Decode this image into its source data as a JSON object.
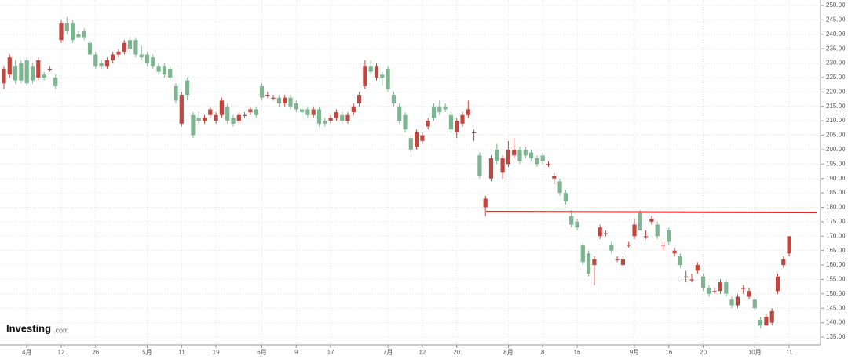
{
  "chart_data": {
    "type": "candlestick",
    "categories": [
      null,
      null,
      null,
      null,
      "4月",
      null,
      null,
      null,
      null,
      null,
      "12",
      null,
      null,
      null,
      null,
      null,
      "26",
      null,
      null,
      null,
      null,
      null,
      null,
      null,
      null,
      "5月",
      null,
      null,
      null,
      null,
      null,
      "11",
      null,
      null,
      null,
      null,
      null,
      "19",
      null,
      null,
      null,
      null,
      null,
      null,
      null,
      "6月",
      null,
      null,
      null,
      null,
      null,
      "9",
      null,
      null,
      null,
      null,
      null,
      "17",
      null,
      null,
      null,
      null,
      null,
      null,
      null,
      null,
      null,
      "7月",
      null,
      null,
      null,
      null,
      null,
      "12",
      null,
      null,
      null,
      null,
      null,
      "20",
      null,
      null,
      null,
      null,
      null,
      null,
      null,
      null,
      "8月",
      null,
      null,
      null,
      null,
      null,
      "8",
      null,
      null,
      null,
      null,
      null,
      "16",
      null,
      null,
      null,
      null,
      null,
      null,
      null,
      null,
      null,
      "9月",
      null,
      null,
      null,
      null,
      null,
      "16",
      null,
      null,
      null,
      null,
      null,
      "20",
      null,
      null,
      null,
      null,
      null,
      null,
      null,
      null,
      "10月",
      null,
      null,
      null,
      null,
      null,
      "11"
    ],
    "ohlc": [
      [
        223,
        229,
        221,
        228
      ],
      [
        226,
        233,
        225,
        232
      ],
      [
        229,
        231,
        223,
        224
      ],
      [
        230,
        231,
        223,
        224
      ],
      [
        231,
        232,
        222,
        223
      ],
      [
        229,
        230,
        223,
        224
      ],
      [
        225,
        232,
        224,
        231
      ],
      [
        226,
        227,
        224,
        225
      ],
      [
        228,
        229,
        227,
        228
      ],
      [
        225,
        226,
        221,
        222
      ],
      [
        238,
        245,
        237,
        244
      ],
      [
        244,
        246,
        240,
        241
      ],
      [
        244,
        245,
        237,
        238
      ],
      [
        240,
        241,
        239,
        239
      ],
      [
        241,
        242,
        238,
        239
      ],
      [
        237,
        238,
        233,
        233
      ],
      [
        233,
        234,
        228,
        229
      ],
      [
        230,
        231,
        228,
        229
      ],
      [
        229,
        232,
        228,
        231
      ],
      [
        231,
        234,
        230,
        233
      ],
      [
        233,
        235,
        232,
        234
      ],
      [
        234,
        238,
        233,
        237
      ],
      [
        238,
        239,
        234,
        235
      ],
      [
        238,
        239,
        232,
        233
      ],
      [
        233,
        236,
        231,
        232
      ],
      [
        233,
        234,
        229,
        230
      ],
      [
        232,
        233,
        228,
        229
      ],
      [
        229,
        230,
        226,
        227
      ],
      [
        229,
        230,
        225,
        226
      ],
      [
        228,
        229,
        224,
        225
      ],
      [
        222,
        223,
        216,
        217
      ],
      [
        209,
        220,
        208,
        219
      ],
      [
        224,
        225,
        217,
        219
      ],
      [
        212,
        213,
        204,
        205
      ],
      [
        211,
        213,
        209,
        210
      ],
      [
        210,
        212,
        209,
        211
      ],
      [
        212,
        215,
        211,
        214
      ],
      [
        210,
        213,
        209,
        212
      ],
      [
        212,
        218,
        211,
        217
      ],
      [
        215,
        216,
        209,
        210
      ],
      [
        211,
        212,
        208,
        209
      ],
      [
        210,
        213,
        209,
        212
      ],
      [
        212,
        213,
        211,
        212
      ],
      [
        213,
        215,
        212,
        214
      ],
      [
        214,
        215,
        211,
        212
      ],
      [
        222,
        223,
        217,
        218
      ],
      [
        219,
        220,
        218,
        219
      ],
      [
        218,
        219,
        217,
        218
      ],
      [
        218,
        219,
        215,
        216
      ],
      [
        216,
        219,
        215,
        218
      ],
      [
        218,
        219,
        214,
        215
      ],
      [
        216,
        217,
        213,
        214
      ],
      [
        214,
        215,
        212,
        213
      ],
      [
        214,
        215,
        211,
        212
      ],
      [
        212,
        215,
        211,
        214
      ],
      [
        214,
        215,
        208,
        209
      ],
      [
        210,
        211,
        208,
        209
      ],
      [
        210,
        212,
        209,
        211
      ],
      [
        211,
        214,
        210,
        213
      ],
      [
        212,
        213,
        209,
        210
      ],
      [
        210,
        213,
        209,
        212
      ],
      [
        213,
        216,
        212,
        215
      ],
      [
        216,
        220,
        215,
        219
      ],
      [
        222,
        231,
        221,
        229
      ],
      [
        229,
        231,
        226,
        227
      ],
      [
        225,
        230,
        224,
        229
      ],
      [
        226,
        227,
        222,
        225
      ],
      [
        228,
        229,
        220,
        221
      ],
      [
        219,
        220,
        215,
        216
      ],
      [
        215,
        216,
        209,
        210
      ],
      [
        212,
        213,
        206,
        207
      ],
      [
        204,
        205,
        199,
        200
      ],
      [
        201,
        207,
        200,
        206
      ],
      [
        203,
        206,
        202,
        205
      ],
      [
        208,
        211,
        207,
        210
      ],
      [
        215,
        216,
        210,
        211
      ],
      [
        215,
        217,
        212,
        213
      ],
      [
        215,
        216,
        213,
        214
      ],
      [
        212,
        213,
        206,
        207
      ],
      [
        206,
        211,
        204,
        210
      ],
      [
        209,
        213,
        208,
        212
      ],
      [
        212,
        217,
        211,
        214
      ],
      [
        206,
        207,
        203,
        206
      ],
      [
        198,
        199,
        190,
        191
      ],
      [
        180,
        184,
        177,
        183
      ],
      [
        190,
        198,
        189,
        197
      ],
      [
        200,
        202,
        195,
        196
      ],
      [
        192,
        198,
        190,
        197
      ],
      [
        195,
        203,
        194,
        200
      ],
      [
        198,
        204,
        197,
        200
      ],
      [
        200,
        201,
        195,
        196
      ],
      [
        200,
        201,
        197,
        198
      ],
      [
        199,
        200,
        196,
        197
      ],
      [
        197,
        198,
        194,
        195
      ],
      [
        198,
        199,
        195,
        196
      ],
      [
        195,
        196,
        194,
        195
      ],
      [
        190,
        192,
        188,
        191
      ],
      [
        189,
        190,
        184,
        185
      ],
      [
        185,
        186,
        181,
        182
      ],
      [
        177,
        179,
        173,
        174
      ],
      [
        175,
        176,
        172,
        173
      ],
      [
        167,
        168,
        160,
        161
      ],
      [
        164,
        165,
        156,
        157
      ],
      [
        160,
        163,
        153,
        162
      ],
      [
        170,
        174,
        169,
        173
      ],
      [
        171,
        172,
        170,
        171
      ],
      [
        167,
        168,
        164,
        165
      ],
      [
        162,
        163,
        161,
        162
      ],
      [
        160,
        163,
        159,
        162
      ],
      [
        167,
        168,
        166,
        167
      ],
      [
        170,
        176,
        169,
        174
      ],
      [
        178,
        179,
        172,
        172
      ],
      [
        170,
        172,
        169,
        170
      ],
      [
        175,
        177,
        174,
        176
      ],
      [
        174,
        175,
        169,
        170
      ],
      [
        167,
        168,
        165,
        167
      ],
      [
        172,
        173,
        167,
        168
      ],
      [
        164,
        166,
        163,
        165
      ],
      [
        163,
        164,
        159,
        160
      ],
      [
        156,
        158,
        154,
        156
      ],
      [
        155,
        157,
        154,
        155
      ],
      [
        158,
        161,
        157,
        160
      ],
      [
        156,
        157,
        151,
        152
      ],
      [
        152,
        153,
        149,
        150
      ],
      [
        151,
        152,
        150,
        151
      ],
      [
        151,
        155,
        150,
        154
      ],
      [
        154,
        155,
        149,
        150
      ],
      [
        148,
        149,
        145,
        146
      ],
      [
        146,
        150,
        145,
        149
      ],
      [
        152,
        153,
        150,
        152
      ],
      [
        149,
        152,
        148,
        151
      ],
      [
        148,
        149,
        144,
        145
      ],
      [
        141,
        142,
        138,
        139
      ],
      [
        139,
        143,
        139,
        142
      ],
      [
        140,
        145,
        139,
        144
      ],
      [
        151,
        157,
        150,
        156
      ],
      [
        160,
        163,
        159,
        162
      ],
      [
        164,
        170,
        163,
        170
      ]
    ],
    "up_color": "#c0473f",
    "down_color": "#7db591",
    "ylim": [
      135,
      250
    ],
    "yticks": [
      {
        "value": 135,
        "label": "135.00"
      },
      {
        "value": 140,
        "label": "140.00"
      },
      {
        "value": 145,
        "label": "145.00"
      },
      {
        "value": 150,
        "label": "150.00"
      },
      {
        "value": 155,
        "label": "155.00"
      },
      {
        "value": 160,
        "label": "160.00"
      },
      {
        "value": 165,
        "label": "165.00"
      },
      {
        "value": 170,
        "label": "170.00"
      },
      {
        "value": 175,
        "label": "175.00"
      },
      {
        "value": 180,
        "label": "180.00"
      },
      {
        "value": 185,
        "label": "185.00"
      },
      {
        "value": 190,
        "label": "190.00"
      },
      {
        "value": 195,
        "label": "195.00"
      },
      {
        "value": 200,
        "label": "200.00"
      },
      {
        "value": 205,
        "label": "205.00"
      },
      {
        "value": 210,
        "label": "210.00"
      },
      {
        "value": 215,
        "label": "215.00"
      },
      {
        "value": 220,
        "label": "220.00"
      },
      {
        "value": 225,
        "label": "225.00"
      },
      {
        "value": 230,
        "label": "230.00"
      },
      {
        "value": 235,
        "label": "235.00"
      },
      {
        "value": 240,
        "label": "240.00"
      },
      {
        "value": 245,
        "label": "245.00"
      },
      {
        "value": 250,
        "label": "250.00"
      }
    ],
    "grid": true,
    "trendline": {
      "start": 178.5,
      "end": 178.2,
      "color": "#e0262b"
    },
    "watermark": {
      "brand": "Investing",
      "suffix": ".com"
    }
  }
}
